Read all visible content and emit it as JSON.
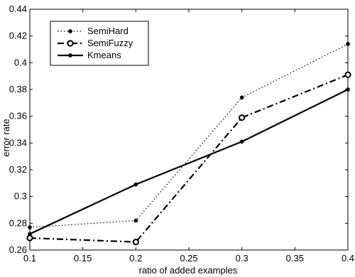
{
  "chart_data": {
    "type": "line",
    "title": "",
    "xlabel": "ratio of added examples",
    "ylabel": "error rate",
    "x": [
      0.1,
      0.2,
      0.3,
      0.4
    ],
    "xlim": [
      0.1,
      0.4
    ],
    "ylim": [
      0.26,
      0.44
    ],
    "xticks": [
      0.1,
      0.15,
      0.2,
      0.25,
      0.3,
      0.35,
      0.4
    ],
    "yticks": [
      0.26,
      0.28,
      0.3,
      0.32,
      0.34,
      0.36,
      0.38,
      0.4,
      0.42,
      0.44
    ],
    "xtick_labels": [
      "0.1",
      "0.15",
      "0.2",
      "0.25",
      "0.3",
      "0.35",
      "0.4"
    ],
    "ytick_labels": [
      "0.26",
      "0.28",
      "0.3",
      "0.32",
      "0.34",
      "0.36",
      "0.38",
      "0.4",
      "0.42",
      "0.44"
    ],
    "grid": false,
    "legend_position": "top-left",
    "series": [
      {
        "name": "SemiHard",
        "values": [
          0.277,
          0.282,
          0.374,
          0.414
        ],
        "line_style": "dotted",
        "marker": "dot",
        "color": "#000000"
      },
      {
        "name": "SemiFuzzy",
        "values": [
          0.269,
          0.266,
          0.359,
          0.391
        ],
        "line_style": "dashdot",
        "marker": "circle",
        "color": "#000000"
      },
      {
        "name": "Kmeans",
        "values": [
          0.272,
          0.309,
          0.341,
          0.38
        ],
        "line_style": "solid",
        "marker": "dot",
        "color": "#000000"
      }
    ]
  }
}
